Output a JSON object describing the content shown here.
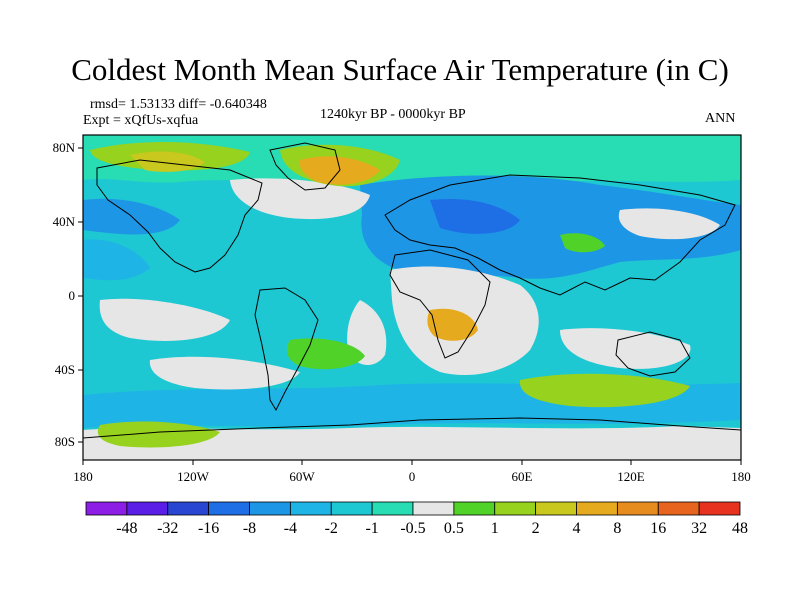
{
  "title": "Coldest Month Mean Surface Air Temperature (in C)",
  "stats": "rmsd= 1.53133  diff= -0.640348",
  "experiment": "Expt = xQfUs-xqfua",
  "period": "1240kyr BP - 0000kyr BP",
  "season": "ANN",
  "lat_ticks": [
    "80N",
    "40N",
    "0",
    "40S",
    "80S"
  ],
  "lon_ticks": [
    "180",
    "120W",
    "60W",
    "0",
    "60E",
    "120E",
    "180"
  ],
  "colorbar": {
    "colors": [
      "#8c1ee6",
      "#5a1ee6",
      "#2846d2",
      "#1e6ee6",
      "#1e96e6",
      "#1eb4e6",
      "#1ec8d2",
      "#28dcb4",
      "#e6e6e6",
      "#50d228",
      "#96d21e",
      "#c8c81e",
      "#e6aa1e",
      "#e68c1e",
      "#e6641e",
      "#e6321e"
    ],
    "labels": [
      "-48",
      "-32",
      "-16",
      "-8",
      "-4",
      "-2",
      "-1",
      "-0.5",
      "0.5",
      "1",
      "2",
      "4",
      "8",
      "16",
      "32",
      "48"
    ]
  }
}
